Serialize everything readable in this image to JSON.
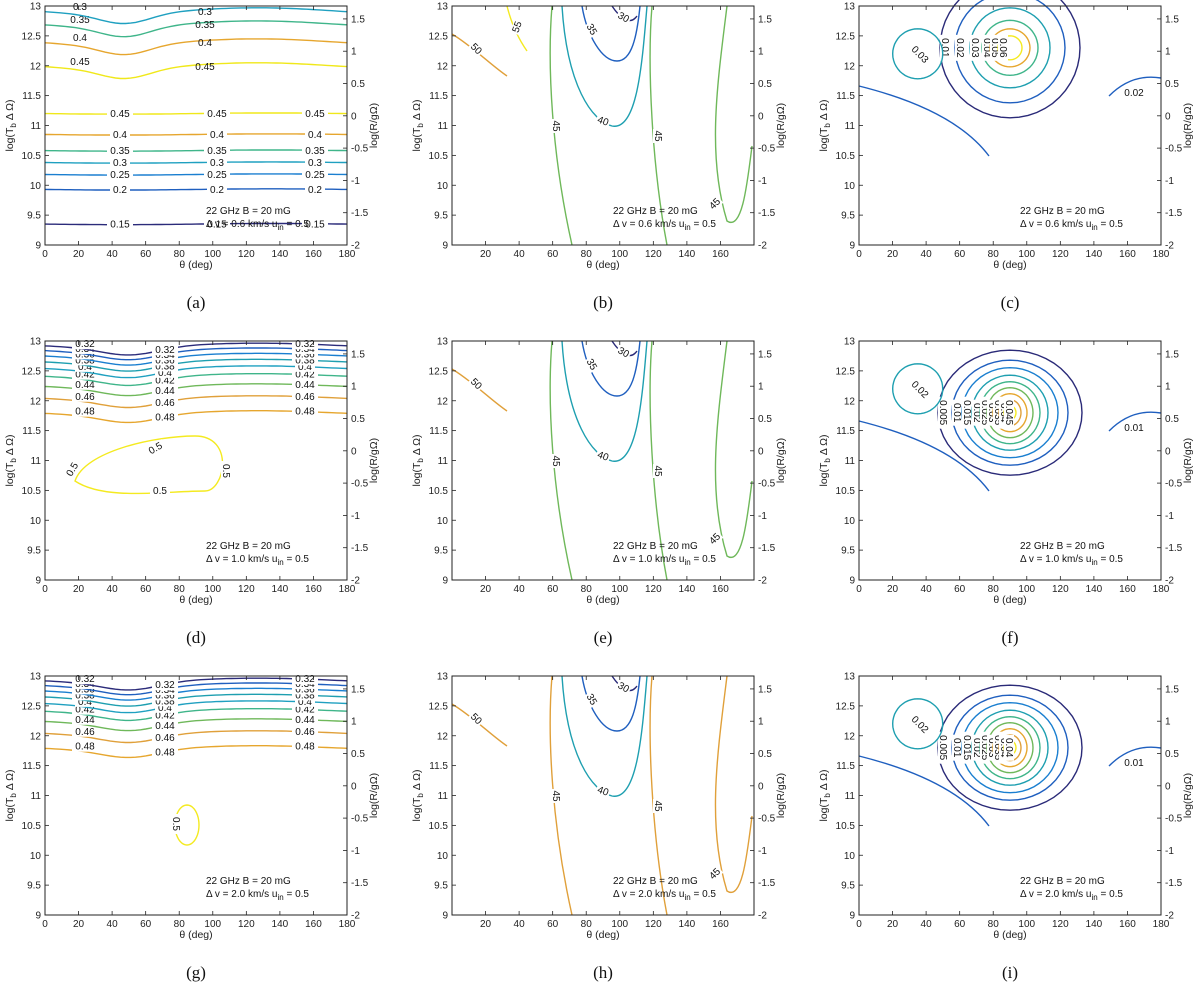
{
  "figure": {
    "type": "contour",
    "shared": {
      "xlabel": "θ (deg)",
      "ylabel_left": "log(T_b Δ Ω)",
      "ylabel_right": "log(R/gΩ)",
      "ylim_left": [
        9,
        13
      ],
      "yticks_left": [
        "9",
        "9.5",
        "10",
        "10.5",
        "11",
        "11.5",
        "12",
        "12.5",
        "13"
      ],
      "ylim_right": [
        -2,
        1.7
      ],
      "yticks_right": [
        "-2",
        "-1.5",
        "-1",
        "-0.5",
        "0",
        "0.5",
        "1",
        "1.5"
      ],
      "freq_label": "22 GHz  B = 20 mG",
      "uin_label": "u",
      "uin_sub": "in",
      "uin_value": " = 0.5"
    },
    "colors": {
      "c015": "#2b2b7a",
      "c02": "#1f5fbf",
      "c025": "#1a7fd0",
      "c03": "#1fa0c0",
      "c035": "#3fb58a",
      "c04": "#e6a62e",
      "c045": "#f0e81a",
      "green": "#6fb85a",
      "orange": "#e0a03a",
      "yellow": "#f4ea20",
      "teal": "#1e9fb0",
      "navy": "#2a2a78"
    }
  },
  "chart_data": [
    {
      "panel": "a",
      "caption": "(a)",
      "type": "contour",
      "xlim": [
        0,
        180
      ],
      "xticks": [
        "0",
        "20",
        "40",
        "60",
        "80",
        "100",
        "120",
        "140",
        "160",
        "180"
      ],
      "dv_label": "Δ v = 0.6 km/s  ",
      "levels": [
        "0.15",
        "0.2",
        "0.25",
        "0.3",
        "0.35",
        "0.4",
        "0.45",
        "0.45",
        "0.4",
        "0.35",
        "0.3"
      ],
      "upper_levels": [
        "0.3",
        "0.35",
        "0.4",
        "0.45"
      ]
    },
    {
      "panel": "b",
      "caption": "(b)",
      "type": "contour",
      "xlim": [
        0,
        180
      ],
      "xticks": [
        "20",
        "40",
        "60",
        "80",
        "100",
        "120",
        "140",
        "160"
      ],
      "dv_label": "Δ v = 0.6 km/s  ",
      "levels": [
        "30",
        "35",
        "40",
        "45",
        "50",
        "55"
      ]
    },
    {
      "panel": "c",
      "caption": "(c)",
      "type": "contour",
      "xlim": [
        0,
        180
      ],
      "xticks": [
        "0",
        "20",
        "40",
        "60",
        "80",
        "100",
        "120",
        "140",
        "160",
        "180"
      ],
      "dv_label": "Δ v = 0.6 km/s  ",
      "levels": [
        "0.01",
        "0.02",
        "0.03",
        "0.04",
        "0.05",
        "0.06"
      ]
    },
    {
      "panel": "d",
      "caption": "(d)",
      "type": "contour",
      "xlim": [
        0,
        180
      ],
      "xticks": [
        "0",
        "20",
        "40",
        "60",
        "80",
        "100",
        "120",
        "140",
        "160",
        "180"
      ],
      "dv_label": "Δ v = 1.0 km/s  ",
      "levels": [
        "0.5",
        "0.48",
        "0.46",
        "0.44",
        "0.42",
        "0.4",
        "0.38",
        "0.36",
        "0.34",
        "0.32",
        "0.3"
      ]
    },
    {
      "panel": "e",
      "caption": "(e)",
      "type": "contour",
      "xlim": [
        0,
        180
      ],
      "xticks": [
        "20",
        "40",
        "60",
        "80",
        "100",
        "120",
        "140",
        "160"
      ],
      "dv_label": "Δ v = 1.0 km/s  ",
      "levels": [
        "30",
        "35",
        "40",
        "45",
        "50"
      ]
    },
    {
      "panel": "f",
      "caption": "(f)",
      "type": "contour",
      "xlim": [
        0,
        180
      ],
      "xticks": [
        "0",
        "20",
        "40",
        "60",
        "80",
        "100",
        "120",
        "140",
        "160",
        "180"
      ],
      "dv_label": "Δ v = 1.0 km/s  ",
      "levels": [
        "0.005",
        "0.01",
        "0.015",
        "0.02",
        "0.025",
        "0.03",
        "0.035",
        "0.04",
        "0.045"
      ]
    },
    {
      "panel": "g",
      "caption": "(g)",
      "type": "contour",
      "xlim": [
        0,
        180
      ],
      "xticks": [
        "0",
        "20",
        "40",
        "60",
        "80",
        "100",
        "120",
        "140",
        "160",
        "180"
      ],
      "dv_label": "Δ v = 2.0 km/s  ",
      "levels": [
        "0.5",
        "0.48",
        "0.46",
        "0.44",
        "0.42",
        "0.4",
        "0.38",
        "0.36",
        "0.34",
        "0.32",
        "0.3"
      ]
    },
    {
      "panel": "h",
      "caption": "(h)",
      "type": "contour",
      "xlim": [
        0,
        180
      ],
      "xticks": [
        "20",
        "40",
        "60",
        "80",
        "100",
        "120",
        "140",
        "160"
      ],
      "dv_label": "Δ v = 2.0 km/s  ",
      "levels": [
        "30",
        "35",
        "40",
        "45",
        "50"
      ]
    },
    {
      "panel": "i",
      "caption": "(i)",
      "type": "contour",
      "xlim": [
        0,
        180
      ],
      "xticks": [
        "0",
        "20",
        "40",
        "60",
        "80",
        "100",
        "120",
        "140",
        "160",
        "180"
      ],
      "dv_label": "Δ v = 2.0 km/s  ",
      "levels": [
        "0.005",
        "0.01",
        "0.015",
        "0.02",
        "0.025",
        "0.03",
        "0.035",
        "0.04"
      ]
    }
  ]
}
